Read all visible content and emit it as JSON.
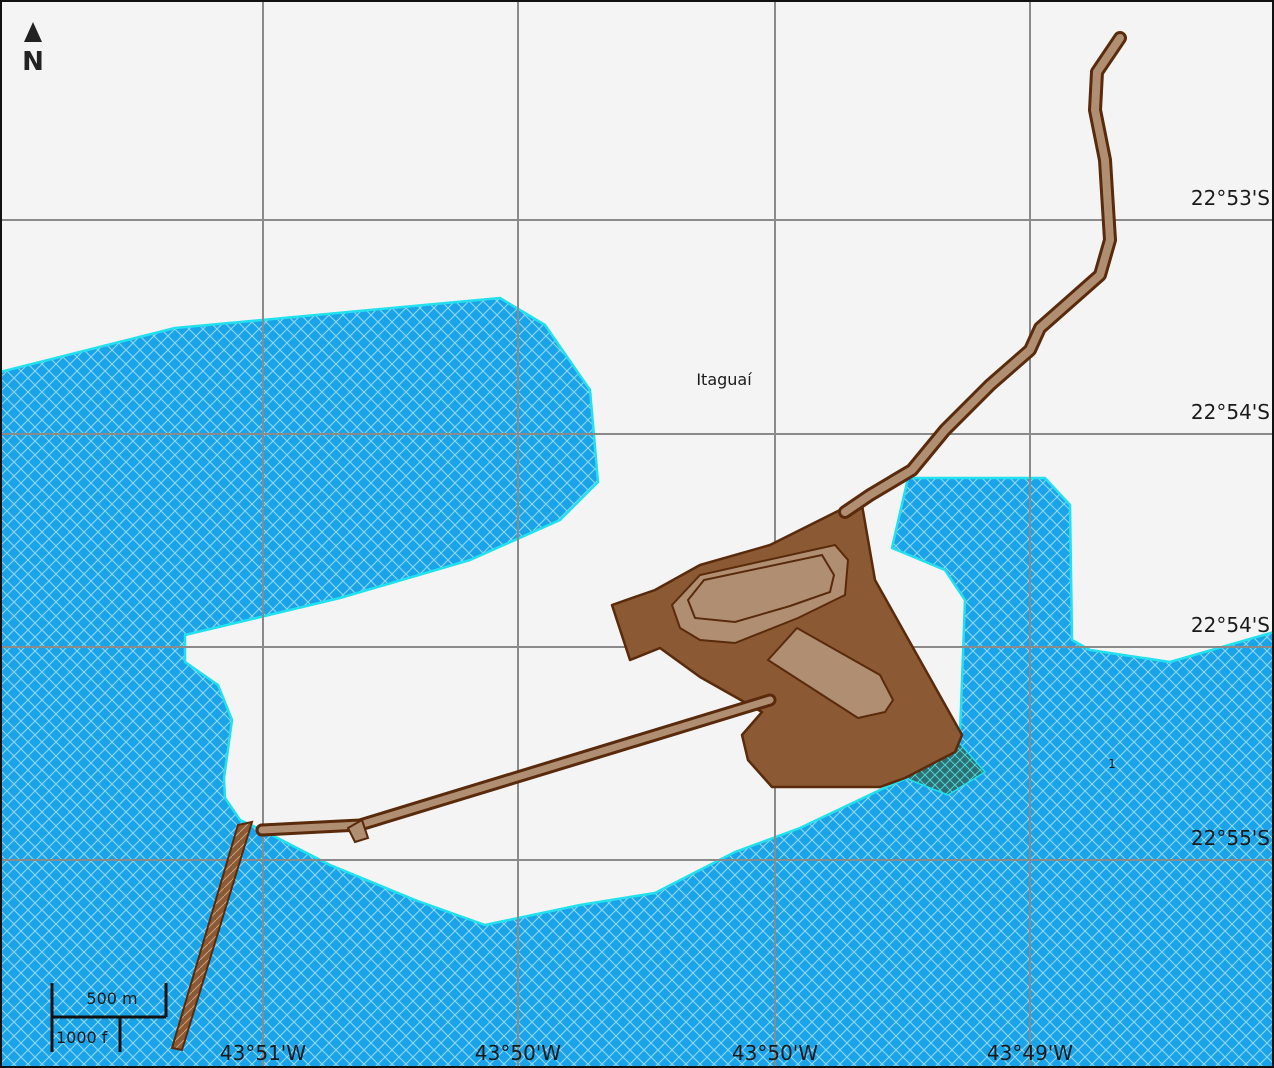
{
  "map": {
    "north_label": "N",
    "place_label": "Itaguaí",
    "small_marker_label": "1",
    "latitude_labels": [
      "22°53'S",
      "22°54'S",
      "22°54'S",
      "22°55'S"
    ],
    "longitude_labels": [
      "43°51'W",
      "43°50'W",
      "43°50'W",
      "43°49'W"
    ],
    "scale_bar": {
      "metric_label": "500 m",
      "imperial_label": "1000 f"
    }
  },
  "colors": {
    "water_fill": "#1aa3e8",
    "water_outline": "#22e0ee",
    "land_background": "#f4f4f4",
    "facility_dark": "#8b5a34",
    "facility_light": "#b08e72",
    "facility_outline": "#5a2a0c",
    "grid_line": "#8a8a8a",
    "wetland_fill": "#2d6f72"
  }
}
